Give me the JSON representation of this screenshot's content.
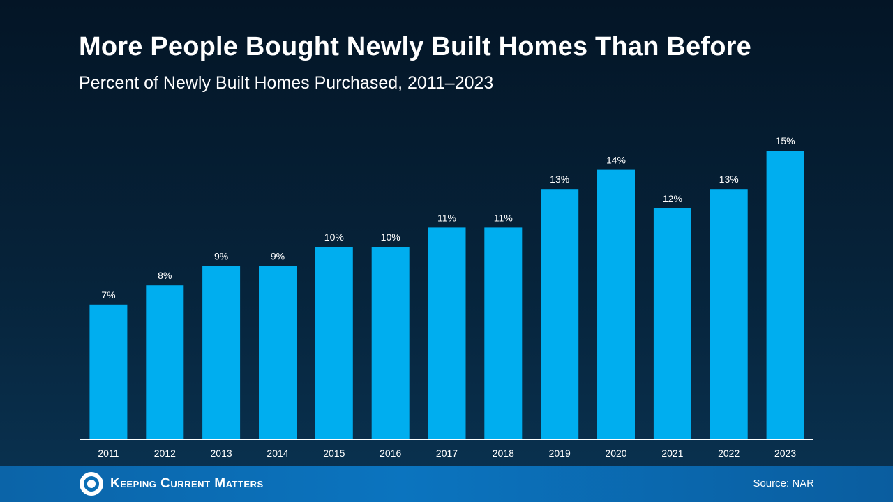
{
  "header": {
    "title": "More People Bought Newly Built Homes Than Before",
    "subtitle": "Percent of Newly Built Homes Purchased, 2011–2023"
  },
  "chart_data": {
    "type": "bar",
    "title": "More People Bought Newly Built Homes Than Before",
    "subtitle": "Percent of Newly Built Homes Purchased, 2011–2023",
    "categories": [
      "2011",
      "2012",
      "2013",
      "2014",
      "2015",
      "2016",
      "2017",
      "2018",
      "2019",
      "2020",
      "2021",
      "2022",
      "2023"
    ],
    "values": [
      7,
      8,
      9,
      9,
      10,
      10,
      11,
      11,
      13,
      14,
      12,
      13,
      15
    ],
    "data_labels": [
      "7%",
      "8%",
      "9%",
      "9%",
      "10%",
      "10%",
      "11%",
      "11%",
      "13%",
      "14%",
      "12%",
      "13%",
      "15%"
    ],
    "xlabel": "",
    "ylabel": "",
    "ylim": [
      0,
      15
    ],
    "grid": false,
    "bar_color": "#00aeef",
    "axis_color": "#ffffff"
  },
  "footer": {
    "logo_text": "Keeping Current Matters",
    "source": "Source: NAR",
    "logo_icon": "kcm-logo-icon"
  }
}
